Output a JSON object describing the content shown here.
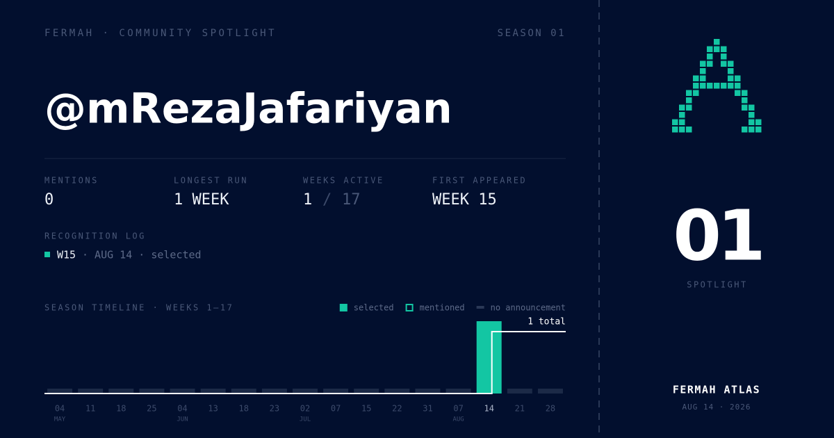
{
  "header": {
    "brand": "FERMAH · COMMUNITY SPOTLIGHT",
    "season": "SEASON 01"
  },
  "handle": "@mRezaJafariyan",
  "stats": [
    {
      "label": "MENTIONS",
      "value": "0"
    },
    {
      "label": "LONGEST RUN",
      "value": "1 WEEK"
    },
    {
      "label": "WEEKS ACTIVE",
      "value": "1",
      "separator": "/",
      "total": "17"
    },
    {
      "label": "FIRST APPEARED",
      "value": "WEEK 15"
    }
  ],
  "log": {
    "title": "RECOGNITION LOG",
    "entries": [
      {
        "week": "W15",
        "detail": "· AUG 14 · selected"
      }
    ]
  },
  "chart_data": {
    "type": "bar",
    "title": "SEASON TIMELINE · WEEKS 1–17",
    "legend": [
      {
        "name": "selected",
        "color": "#13c6a3",
        "style": "filled"
      },
      {
        "name": "mentioned",
        "color": "#13c6a3",
        "style": "outline"
      },
      {
        "name": "no announcement",
        "color": "#1c2a47",
        "style": "dash"
      }
    ],
    "categories": [
      "04",
      "11",
      "18",
      "25",
      "04",
      "13",
      "18",
      "23",
      "02",
      "07",
      "15",
      "22",
      "31",
      "07",
      "14",
      "21",
      "28"
    ],
    "months": [
      "MAY",
      null,
      null,
      null,
      "JUN",
      null,
      null,
      null,
      "JUL",
      null,
      null,
      null,
      null,
      "AUG",
      null,
      null,
      null
    ],
    "values": [
      0,
      0,
      0,
      0,
      0,
      0,
      0,
      0,
      0,
      0,
      0,
      0,
      0,
      0,
      1,
      0,
      0
    ],
    "status": [
      "no announcement",
      "no announcement",
      "no announcement",
      "no announcement",
      "no announcement",
      "no announcement",
      "no announcement",
      "no announcement",
      "no announcement",
      "no announcement",
      "no announcement",
      "no announcement",
      "no announcement",
      "no announcement",
      "selected",
      "no announcement",
      "no announcement"
    ],
    "ylim": [
      0,
      1
    ],
    "total": 1,
    "total_label": "1 total"
  },
  "badge": {
    "number": "01",
    "label": "SPOTLIGHT"
  },
  "footer": {
    "title": "FERMAH ATLAS",
    "date": "AUG 14 · 2026"
  }
}
